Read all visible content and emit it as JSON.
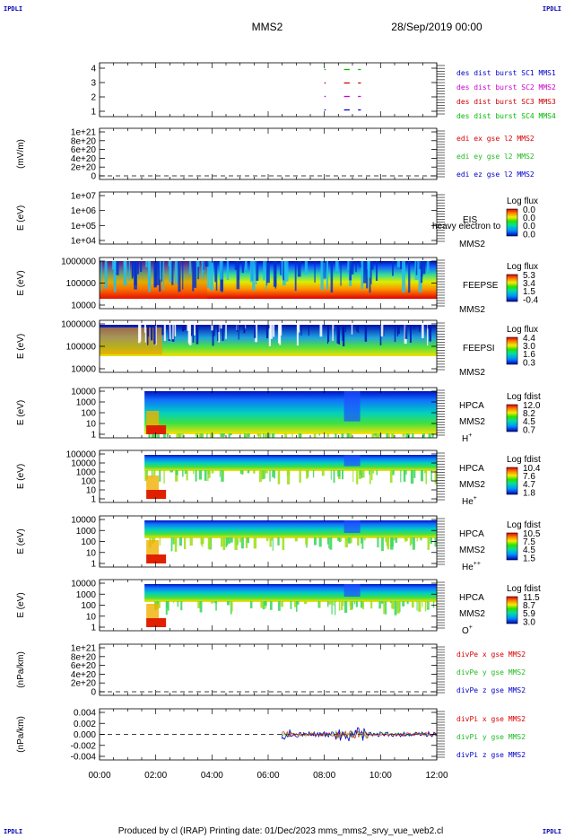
{
  "corner_marks": {
    "tl": "IPDLI",
    "tr": "IPDLI",
    "bl": "IPDLI",
    "br": "IPDLI"
  },
  "header": {
    "mission": "MMS2",
    "date": "28/Sep/2019 00:00"
  },
  "footer": "Produced by cl (IRAP)   Printing date: 01/Dec/2023   mms_mms2_srvy_vue_web2.cl",
  "colors": {
    "mms1": "#0000cc",
    "mms2": "#cc00cc",
    "mms3": "#cc0000",
    "mms4": "#00bb00",
    "x": "#dd0000",
    "y": "#22bb22",
    "z": "#0000cc"
  },
  "chart_data": {
    "type": "multi-panel time series",
    "x_axis": {
      "range": [
        "00:00",
        "12:00"
      ],
      "ticks": [
        "00:00",
        "02:00",
        "04:00",
        "06:00",
        "08:00",
        "10:00",
        "12:00"
      ]
    },
    "panels": [
      {
        "id": "burst",
        "type": "scatter",
        "yticks": [
          "1",
          "2",
          "3",
          "4"
        ],
        "legend": [
          {
            "text": "des dist burst SC1 MMS1",
            "color": "#0000cc"
          },
          {
            "text": "des dist burst SC2 MMS2",
            "color": "#cc00cc"
          },
          {
            "text": "des dist burst SC3 MMS3",
            "color": "#cc0000"
          },
          {
            "text": "des dist burst SC4 MMS4",
            "color": "#00bb00"
          }
        ],
        "segments": [
          {
            "row": 1,
            "color": "#0000cc",
            "x": [
              8.0,
              8.05
            ]
          },
          {
            "row": 1,
            "color": "#0000cc",
            "x": [
              8.7,
              8.9
            ]
          },
          {
            "row": 1,
            "color": "#0000cc",
            "x": [
              9.2,
              9.3
            ]
          },
          {
            "row": 2,
            "color": "#cc00cc",
            "x": [
              8.0,
              8.05
            ]
          },
          {
            "row": 2,
            "color": "#cc00cc",
            "x": [
              8.7,
              8.9
            ]
          },
          {
            "row": 2,
            "color": "#cc00cc",
            "x": [
              9.2,
              9.3
            ]
          },
          {
            "row": 3,
            "color": "#cc0000",
            "x": [
              8.0,
              8.05
            ]
          },
          {
            "row": 3,
            "color": "#cc0000",
            "x": [
              8.7,
              8.9
            ]
          },
          {
            "row": 3,
            "color": "#cc0000",
            "x": [
              9.2,
              9.3
            ]
          },
          {
            "row": 4,
            "color": "#00bb00",
            "x": [
              8.0,
              8.05
            ]
          },
          {
            "row": 4,
            "color": "#00bb00",
            "x": [
              8.7,
              8.9
            ]
          },
          {
            "row": 4,
            "color": "#00bb00",
            "x": [
              9.2,
              9.3
            ]
          }
        ]
      },
      {
        "id": "edi",
        "type": "line",
        "ylabel": "(mV/m)",
        "yticks": [
          "0",
          "2e+20",
          "4e+20",
          "6e+20",
          "8e+20",
          "1e+21"
        ],
        "legend": [
          {
            "text": "edi ex gse l2 MMS2",
            "color": "#dd0000"
          },
          {
            "text": "edi ey gse l2 MMS2",
            "color": "#22bb22"
          },
          {
            "text": "edi ez gse l2 MMS2",
            "color": "#0000cc"
          }
        ]
      },
      {
        "id": "eis",
        "type": "heatmap",
        "ylabel": "E (eV)",
        "yticks": [
          "1e+04",
          "1e+05",
          "1e+06",
          "1e+07"
        ],
        "right_labels": [
          "EIS",
          "MMS2"
        ],
        "overlay_text": "heavy electron to",
        "colorbar": {
          "title": "Log flux",
          "ticks": [
            "0.0",
            "0.0",
            "0.0",
            "0.0"
          ]
        }
      },
      {
        "id": "feepse",
        "type": "heatmap",
        "ylabel": "E (eV)",
        "yticks": [
          "10000",
          "100000",
          "1000000"
        ],
        "right_labels": [
          "FEEPSE",
          "MMS2"
        ],
        "colorbar": {
          "title": "Log flux",
          "ticks": [
            "5.3",
            "3.4",
            "1.5",
            "-0.4"
          ]
        }
      },
      {
        "id": "feepsi",
        "type": "heatmap",
        "ylabel": "E (eV)",
        "yticks": [
          "10000",
          "100000",
          "1000000"
        ],
        "right_labels": [
          "FEEPSI",
          "MMS2"
        ],
        "colorbar": {
          "title": "Log flux",
          "ticks": [
            "4.4",
            "3.0",
            "1.6",
            "0.3"
          ]
        }
      },
      {
        "id": "hpca_h",
        "type": "heatmap",
        "ylabel": "E (eV)",
        "yticks": [
          "1",
          "10",
          "100",
          "1000",
          "10000"
        ],
        "right_labels": [
          "HPCA",
          "MMS2"
        ],
        "species": "H",
        "species_sup": "+",
        "colorbar": {
          "title": "Log fdist",
          "ticks": [
            "12.0",
            "8.2",
            "4.5",
            "0.7"
          ]
        }
      },
      {
        "id": "hpca_he",
        "type": "heatmap",
        "ylabel": "E (eV)",
        "yticks": [
          "1",
          "10",
          "100",
          "1000",
          "10000",
          "100000"
        ],
        "right_labels": [
          "HPCA",
          "MMS2"
        ],
        "species": "He",
        "species_sup": "+",
        "colorbar": {
          "title": "Log fdist",
          "ticks": [
            "10.4",
            "7.6",
            "4.7",
            "1.8"
          ]
        }
      },
      {
        "id": "hpca_hepp",
        "type": "heatmap",
        "ylabel": "E (eV)",
        "yticks": [
          "1",
          "10",
          "100",
          "1000",
          "10000"
        ],
        "right_labels": [
          "HPCA",
          "MMS2"
        ],
        "species": "He",
        "species_sup": "++",
        "colorbar": {
          "title": "Log fdist",
          "ticks": [
            "10.5",
            "7.5",
            "4.5",
            "1.5"
          ]
        }
      },
      {
        "id": "hpca_o",
        "type": "heatmap",
        "ylabel": "E (eV)",
        "yticks": [
          "1",
          "10",
          "100",
          "1000",
          "10000"
        ],
        "right_labels": [
          "HPCA",
          "MMS2"
        ],
        "species": "O",
        "species_sup": "+",
        "colorbar": {
          "title": "Log fdist",
          "ticks": [
            "11.5",
            "8.7",
            "5.9",
            "3.0"
          ]
        }
      },
      {
        "id": "divpe",
        "type": "line",
        "ylabel": "(nPa/km)",
        "yticks": [
          "0",
          "2e+20",
          "4e+20",
          "6e+20",
          "8e+20",
          "1e+21"
        ],
        "legend": [
          {
            "text": "divPe x gse MMS2",
            "color": "#dd0000"
          },
          {
            "text": "divPe y gse MMS2",
            "color": "#22bb22"
          },
          {
            "text": "divPe z gse MMS2",
            "color": "#0000cc"
          }
        ]
      },
      {
        "id": "divpi",
        "type": "line",
        "ylabel": "(nPa/km)",
        "yticks": [
          "-0.004",
          "-0.002",
          "0.000",
          "0.002",
          "0.004"
        ],
        "ylim": [
          -0.005,
          0.005
        ],
        "data_start": "06:30",
        "legend": [
          {
            "text": "divPi x gse MMS2",
            "color": "#dd0000"
          },
          {
            "text": "divPi y gse MMS2",
            "color": "#22bb22"
          },
          {
            "text": "divPi z gse MMS2",
            "color": "#0000cc"
          }
        ]
      }
    ]
  }
}
